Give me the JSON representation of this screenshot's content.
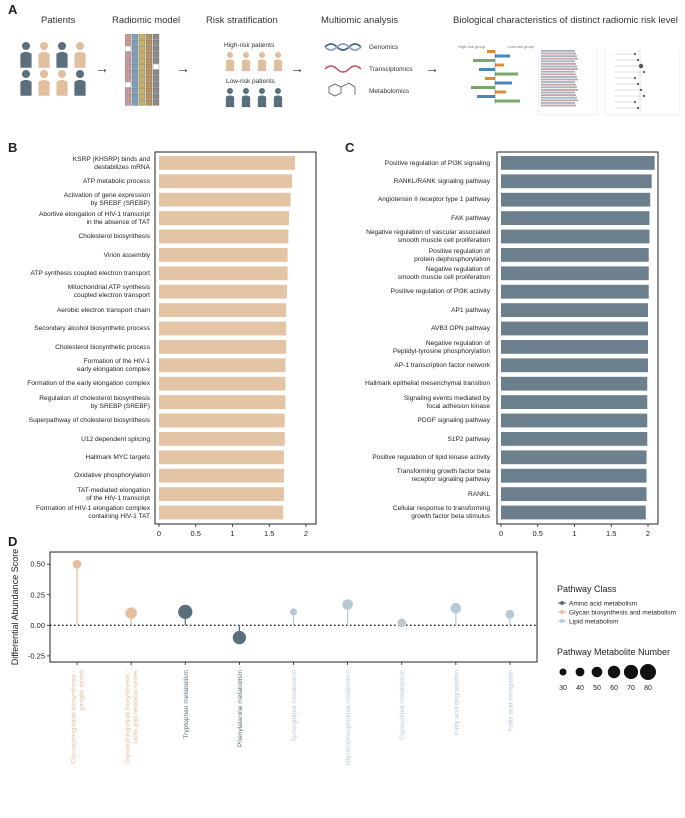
{
  "panels": {
    "a": "A",
    "b": "B",
    "c": "C",
    "d": "D"
  },
  "workflow": {
    "patients_title": "Patients",
    "radiomic_title": "Radiomic model",
    "risk_title": "Risk stratification",
    "high_risk": "High-risk patients",
    "low_risk": "Low-risk patients",
    "multiomic_title": "Multiomic analysis",
    "omics": [
      "Genomics",
      "Transciptomics",
      "Metabolomics"
    ],
    "bio_title": "Biological characteristics of distinct radiomic risk level",
    "mini_high": "High-risk group",
    "mini_low": "Low-risk group",
    "arrow": "→",
    "colors": {
      "tan": "#e0bf9f",
      "slate": "#5a6e7b",
      "brown": "#b9915c",
      "olive": "#c8b26a",
      "pink": "#c99a9a",
      "blue": "#7f9fb8"
    }
  },
  "chart_data": [
    {
      "id": "B",
      "type": "bar",
      "orientation": "horizontal",
      "xlabel": "NES",
      "xlim": [
        0,
        2
      ],
      "xticks": [
        "0",
        "0.5",
        "1",
        "1.5",
        "2"
      ],
      "color": "#e3c4a5",
      "categories": [
        "KSRP (KHSRP) binds and\ndestabilizes mRNA",
        "ATP metabolic process",
        "Activation of gene expression\nby SREBF (SREBP)",
        "Abortive elongation of HIV-1 transcript\nin the absence of TAT",
        "Cholesterol biosynthesis",
        "Virion assembly",
        "ATP synthesis coupled electron transport",
        "Mitochondrial ATP synthesis\ncoupled electron transport",
        "Aerobic electron transport chain",
        "Secondary alcohol biosynthetic process",
        "Cholesterol biosynthetic process",
        "Formation of the HIV-1\nearly elongation complex",
        "Formation of the early elongation complex",
        "Regulation of cholesterol biosynthesis\nby SREBP (SREBF)",
        "Superpathway of cholesterol biosynthesis",
        "U12 dependent splicing",
        "Hallmark MYC targets",
        "Oxidative phosphorylation",
        "TAT-mediated elongation\nof the HIV-1 transcript",
        "Formation of HIV-1 elongation complex\ncontaining HIV-1 TAT"
      ],
      "values": [
        1.85,
        1.81,
        1.79,
        1.77,
        1.76,
        1.75,
        1.75,
        1.74,
        1.73,
        1.73,
        1.73,
        1.72,
        1.72,
        1.72,
        1.71,
        1.71,
        1.7,
        1.7,
        1.7,
        1.69
      ]
    },
    {
      "id": "C",
      "type": "bar",
      "orientation": "horizontal",
      "xlabel": "NES",
      "xlim": [
        0,
        2
      ],
      "xticks": [
        "0",
        "0.5",
        "1",
        "1.5",
        "2"
      ],
      "color": "#6b7f8c",
      "categories": [
        "Positive regulation of PI3K signaling",
        "RANKL/RANK signaling pathway",
        "Angiotensin II receptor type 1 pathway",
        "FAK pathway",
        "Negative regulation of vascular associated\nsmooth muscle cell proliferation",
        "Positive regulation of\nprotein dephosphorylation",
        "Negative regulation of\nsmooth muscle cell proliferation",
        "Positive regulation of PI3K activity",
        "AP1 pathway",
        "AVB3 OPN pathway",
        "Negative regulation of\nPeptidyl-tyrosine phosphorylation",
        "AP-1 transcription factor network",
        "Hallmark epithelial mesenchymal transition",
        "Signaling events mediated by\nfocal adhesion kinase",
        "PDGF signaling pathway",
        "S1P2 pathway",
        "Positive regulation of lipid kinase activity",
        "Transforming growth factor beta\nreceptor signaling pathway",
        "RANKL",
        "Cellular response to transforming\ngrowth factor beta stimulus"
      ],
      "values": [
        2.09,
        2.05,
        2.03,
        2.02,
        2.02,
        2.01,
        2.01,
        2.01,
        2.0,
        2.0,
        2.0,
        2.0,
        1.99,
        1.99,
        1.99,
        1.99,
        1.98,
        1.98,
        1.98,
        1.97
      ]
    },
    {
      "id": "D",
      "type": "scatter",
      "subtype": "lollipop",
      "ylabel": "Differential Abundance Score",
      "ylim": [
        -0.3,
        0.6
      ],
      "yticks": [
        "0.50",
        "0.25",
        "0.00",
        "-0.25"
      ],
      "ytick_values": [
        0.5,
        0.25,
        0,
        -0.25
      ],
      "categories": [
        "Glycosphingolipid biosynthesis -\nganglio series",
        "Glycosphingolipid biosynthesis -\nlacto and neolacto series",
        "Tryptophan metabolism",
        "Phenylalanine metabolism",
        "Sphingolipid metabolism",
        "Glycerophospholipid metabolism",
        "Glycerolipid metabolism",
        "Fatty acid degradation",
        "Fatty acid elongation"
      ],
      "values": [
        0.5,
        0.1,
        0.11,
        -0.1,
        0.11,
        0.17,
        0.02,
        0.14,
        0.09
      ],
      "classes": [
        "glycan",
        "glycan",
        "amino",
        "amino",
        "lipid",
        "lipid",
        "lipid",
        "lipid",
        "lipid"
      ],
      "sizes": [
        40,
        55,
        70,
        65,
        30,
        50,
        40,
        50,
        40
      ],
      "legend_class_title": "Pathway Class",
      "legend_classes": [
        {
          "key": "amino",
          "label": "Amino acid metabolism",
          "color": "#5a6e7b"
        },
        {
          "key": "glycan",
          "label": "Glycan biosynthesis and metabolism",
          "color": "#e3bf9e"
        },
        {
          "key": "lipid",
          "label": "Lipid metabolism",
          "color": "#b8c9d6"
        }
      ],
      "legend_size_title": "Pathway Metabolite Number",
      "legend_sizes": [
        30,
        40,
        50,
        60,
        70,
        80
      ]
    }
  ]
}
